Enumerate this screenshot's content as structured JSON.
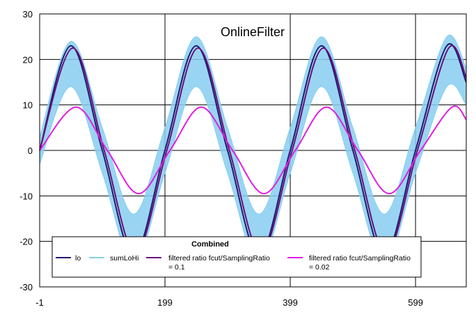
{
  "chart_data": {
    "type": "line",
    "title": "OnlineFilter",
    "xlabel": "",
    "ylabel": "",
    "xlim": [
      -1,
      680
    ],
    "ylim": [
      -30,
      30
    ],
    "x_ticks": [
      -1,
      199,
      399,
      599
    ],
    "x_tick_labels": [
      "-1",
      "199",
      "399",
      "599"
    ],
    "y_ticks": [
      -30,
      -20,
      -10,
      0,
      10,
      20,
      30
    ],
    "y_tick_labels": [
      "-30",
      "-20",
      "-10",
      "0",
      "10",
      "20",
      "30"
    ],
    "grid": true,
    "legend": {
      "title": "Combined",
      "placement": "bottom-center",
      "entries": [
        "lo",
        "sumLoHi",
        "filtered ratio fcut/SamplingRatio = 0.1",
        "filtered ratio fcut/SamplingRatio = 0.02"
      ]
    },
    "series": [
      {
        "name": "lo",
        "color": "#1f1a6e",
        "x": [
          -1,
          49,
          99,
          149,
          199,
          249,
          299,
          349,
          399,
          449,
          499,
          549,
          599,
          649,
          680
        ],
        "y": [
          0,
          23,
          0,
          -23,
          0,
          23,
          0,
          -23,
          0,
          23,
          0,
          -23,
          0,
          23,
          15
        ]
      },
      {
        "name": "sumLoHi",
        "color": "#87cef0",
        "x": [
          -1,
          49,
          99,
          149,
          199,
          249,
          299,
          349,
          399,
          449,
          499,
          549,
          599,
          649,
          680
        ],
        "y": [
          0,
          23,
          0,
          -23,
          0,
          23,
          0,
          -23,
          0,
          23,
          0,
          -23,
          0,
          23,
          15
        ],
        "band_upper": [
          3,
          24,
          5,
          -14,
          5,
          25,
          5,
          -14,
          5,
          25,
          5,
          -14,
          5,
          25,
          18
        ],
        "band_lower": [
          -3,
          14,
          -5,
          -25,
          -5,
          14,
          -5,
          -25,
          -5,
          14,
          -5,
          -25,
          -5,
          14,
          10
        ]
      },
      {
        "name": "filtered ratio fcut/SamplingRatio = 0.1",
        "color": "#6a0f7a",
        "x": [
          -1,
          52,
          102,
          152,
          202,
          252,
          302,
          352,
          402,
          452,
          502,
          552,
          602,
          652,
          680
        ],
        "y": [
          0,
          22.5,
          0,
          -22.5,
          0,
          22.5,
          0,
          -22.5,
          0,
          22.5,
          0,
          -22.5,
          0,
          22.5,
          16
        ]
      },
      {
        "name": "filtered ratio fcut/SamplingRatio = 0.02",
        "color": "#e21ce0",
        "x": [
          -1,
          57,
          107,
          157,
          207,
          257,
          307,
          357,
          407,
          457,
          507,
          557,
          607,
          657,
          680
        ],
        "y": [
          0,
          9.5,
          0,
          -9.5,
          0,
          9.5,
          0,
          -9.5,
          0,
          9.5,
          0,
          -9.5,
          0,
          9.5,
          6.8
        ]
      }
    ]
  }
}
